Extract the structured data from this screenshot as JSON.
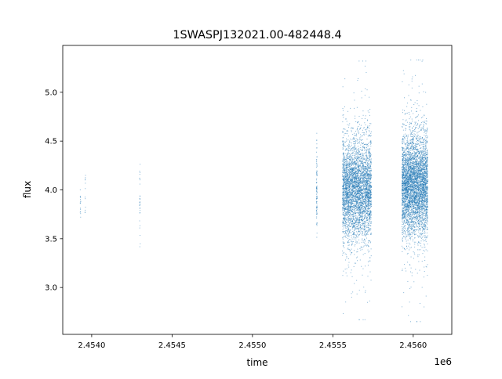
{
  "chart_data": {
    "type": "scatter",
    "title": "1SWASPJ132021.00-482448.4",
    "xlabel": "time",
    "ylabel": "flux",
    "x_offset_label": "1e6",
    "xlim": [
      2.45382,
      2.45624
    ],
    "ylim": [
      2.52,
      5.48
    ],
    "x_ticks": [
      2.454,
      2.4545,
      2.455,
      2.4555,
      2.456
    ],
    "x_tick_labels": [
      "2.4540",
      "2.4545",
      "2.4550",
      "2.4555",
      "2.4560"
    ],
    "y_ticks": [
      3.0,
      3.5,
      4.0,
      4.5,
      5.0
    ],
    "y_tick_labels": [
      "3.0",
      "3.5",
      "4.0",
      "4.5",
      "5.0"
    ],
    "grid": false,
    "point_color": "#1f77b4",
    "point_groups": [
      {
        "x_range": [
          2.453928,
          2.453932
        ],
        "y_center": 3.88,
        "y_spread": 0.1,
        "y_range": [
          3.6,
          4.0
        ],
        "count": 15
      },
      {
        "x_range": [
          2.453958,
          2.453962
        ],
        "y_center": 4.0,
        "y_spread": 0.15,
        "y_range": [
          3.77,
          4.32
        ],
        "count": 12
      },
      {
        "x_range": [
          2.454298,
          2.454302
        ],
        "y_center": 3.9,
        "y_spread": 0.2,
        "y_range": [
          3.35,
          4.32
        ],
        "count": 30
      },
      {
        "x_range": [
          2.455398,
          2.455402
        ],
        "y_center": 4.0,
        "y_spread": 0.2,
        "y_range": [
          3.32,
          4.58
        ],
        "count": 90
      },
      {
        "x_range": [
          2.45556,
          2.45574
        ],
        "y_center": 4.0,
        "y_spread": 0.25,
        "y_range": [
          2.67,
          5.32
        ],
        "count": 4000
      },
      {
        "x_range": [
          2.45593,
          2.45609
        ],
        "y_center": 4.05,
        "y_spread": 0.25,
        "y_range": [
          2.65,
          5.33
        ],
        "count": 4500
      }
    ]
  }
}
